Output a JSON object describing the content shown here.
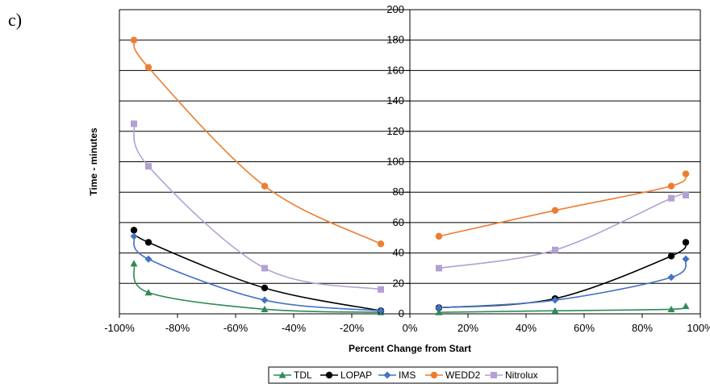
{
  "panel_label": "c)",
  "chart_data": {
    "type": "line",
    "title": "",
    "xlabel": "Percent Change from Start",
    "ylabel": "Time - minutes",
    "xlim": [
      -100,
      100
    ],
    "ylim": [
      0,
      200
    ],
    "xticks": [
      -100,
      -80,
      -60,
      -40,
      -20,
      0,
      20,
      40,
      60,
      80,
      100
    ],
    "xtick_labels": [
      "-100%",
      "-80%",
      "-60%",
      "-40%",
      "-20%",
      "0%",
      "20%",
      "40%",
      "60%",
      "80%",
      "100%"
    ],
    "yticks": [
      0,
      20,
      40,
      60,
      80,
      100,
      120,
      140,
      160,
      180,
      200
    ],
    "ytick_labels": [
      "0",
      "20",
      "40",
      "60",
      "80",
      "100",
      "120",
      "140",
      "160",
      "180",
      "200"
    ],
    "grid": "horizontal",
    "legend_position": "bottom-center",
    "series": [
      {
        "name": "TDL",
        "color": "#2e8b57",
        "marker": "triangle",
        "segments": [
          [
            [
              -95,
              33
            ],
            [
              -90,
              14
            ],
            [
              -50,
              3
            ],
            [
              -10,
              1
            ]
          ],
          [
            [
              10,
              1
            ],
            [
              50,
              2
            ],
            [
              90,
              3
            ],
            [
              95,
              5
            ]
          ]
        ]
      },
      {
        "name": "LOPAP",
        "color": "#000000",
        "marker": "circle",
        "segments": [
          [
            [
              -95,
              55
            ],
            [
              -90,
              47
            ],
            [
              -50,
              17
            ],
            [
              -10,
              2
            ]
          ],
          [
            [
              10,
              4
            ],
            [
              50,
              10
            ],
            [
              90,
              38
            ],
            [
              95,
              47
            ]
          ]
        ]
      },
      {
        "name": "IMS",
        "color": "#4472c4",
        "marker": "diamond",
        "segments": [
          [
            [
              -95,
              51
            ],
            [
              -90,
              36
            ],
            [
              -50,
              9
            ],
            [
              -10,
              2
            ]
          ],
          [
            [
              10,
              4
            ],
            [
              50,
              9
            ],
            [
              90,
              24
            ],
            [
              95,
              36
            ]
          ]
        ]
      },
      {
        "name": "WEDD2",
        "color": "#ed7d31",
        "marker": "circle",
        "segments": [
          [
            [
              -95,
              180
            ],
            [
              -90,
              162
            ],
            [
              -50,
              84
            ],
            [
              -10,
              46
            ]
          ],
          [
            [
              10,
              51
            ],
            [
              50,
              68
            ],
            [
              90,
              84
            ],
            [
              95,
              92
            ]
          ]
        ]
      },
      {
        "name": "Nitrolux",
        "color": "#b4a0d2",
        "marker": "square",
        "segments": [
          [
            [
              -95,
              125
            ],
            [
              -90,
              97
            ],
            [
              -50,
              30
            ],
            [
              -10,
              16
            ]
          ],
          [
            [
              10,
              30
            ],
            [
              50,
              42
            ],
            [
              90,
              76
            ],
            [
              95,
              78
            ]
          ]
        ]
      }
    ]
  }
}
